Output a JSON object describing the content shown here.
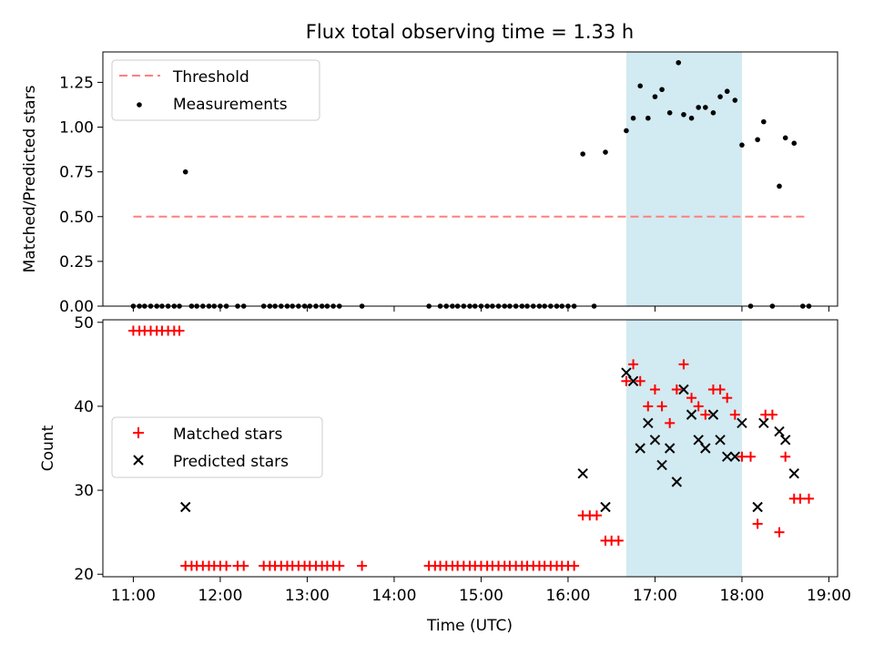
{
  "chart_data": {
    "title": "Flux total observing time = 1.33 h",
    "xlabel": "Time (UTC)",
    "x_ticks": [
      {
        "hour": 11,
        "label": "11:00"
      },
      {
        "hour": 12,
        "label": "12:00"
      },
      {
        "hour": 13,
        "label": "13:00"
      },
      {
        "hour": 14,
        "label": "14:00"
      },
      {
        "hour": 15,
        "label": "15:00"
      },
      {
        "hour": 16,
        "label": "16:00"
      },
      {
        "hour": 17,
        "label": "17:00"
      },
      {
        "hour": 18,
        "label": "18:00"
      },
      {
        "hour": 19,
        "label": "19:00"
      }
    ],
    "x_unit": "hour of day UTC",
    "xlim": [
      10.65,
      19.1
    ],
    "highlight_span": [
      16.67,
      18.0
    ],
    "highlight_color": "#add8e6",
    "panels": [
      {
        "type": "scatter",
        "ylabel": "Matched/Predicted stars",
        "ylim": [
          0,
          1.42
        ],
        "y_ticks": [
          "0.00",
          "0.25",
          "0.50",
          "0.75",
          "1.00",
          "1.25"
        ],
        "legend_position": "upper-left",
        "threshold": {
          "name": "Threshold",
          "value": 0.5,
          "x_range": [
            11.0,
            18.77
          ],
          "color": "#ff7f7f",
          "style": "dashed"
        },
        "series": [
          {
            "name": "Measurements",
            "color": "#000000",
            "marker": "dot",
            "x": [
              11.0,
              11.07,
              11.13,
              11.2,
              11.27,
              11.33,
              11.4,
              11.47,
              11.53,
              11.6,
              11.67,
              11.73,
              11.8,
              11.87,
              11.93,
              12.0,
              12.07,
              12.2,
              12.27,
              12.5,
              12.57,
              12.63,
              12.7,
              12.77,
              12.83,
              12.9,
              12.97,
              13.03,
              13.1,
              13.17,
              13.23,
              13.3,
              13.37,
              13.63,
              14.4,
              14.53,
              14.6,
              14.67,
              14.73,
              14.8,
              14.87,
              14.93,
              15.0,
              15.07,
              15.13,
              15.2,
              15.27,
              15.33,
              15.4,
              15.47,
              15.53,
              15.6,
              15.67,
              15.73,
              15.8,
              15.87,
              15.93,
              16.0,
              16.07,
              16.17,
              16.3,
              16.43,
              16.67,
              16.75,
              16.83,
              16.92,
              17.0,
              17.08,
              17.17,
              17.27,
              17.33,
              17.42,
              17.5,
              17.58,
              17.67,
              17.75,
              17.83,
              17.92,
              18.0,
              18.1,
              18.18,
              18.25,
              18.35,
              18.43,
              18.5,
              18.6,
              18.7,
              18.77
            ],
            "y": [
              0,
              0,
              0,
              0,
              0,
              0,
              0,
              0,
              0,
              0.75,
              0,
              0,
              0,
              0,
              0,
              0,
              0,
              0,
              0,
              0,
              0,
              0,
              0,
              0,
              0,
              0,
              0,
              0,
              0,
              0,
              0,
              0,
              0,
              0,
              0,
              0,
              0,
              0,
              0,
              0,
              0,
              0,
              0,
              0,
              0,
              0,
              0,
              0,
              0,
              0,
              0,
              0,
              0,
              0,
              0,
              0,
              0,
              0,
              0,
              0.85,
              0,
              0.86,
              0.98,
              1.05,
              1.23,
              1.05,
              1.17,
              1.21,
              1.08,
              1.36,
              1.07,
              1.05,
              1.11,
              1.11,
              1.08,
              1.17,
              1.2,
              1.15,
              0.9,
              0,
              0.93,
              1.03,
              0,
              0.67,
              0.94,
              0.91,
              0,
              0
            ]
          }
        ]
      },
      {
        "type": "scatter",
        "ylabel": "Count",
        "ylim": [
          19.7,
          50.3
        ],
        "y_ticks": [
          "20",
          "30",
          "40",
          "50"
        ],
        "legend_position": "center-left",
        "series": [
          {
            "name": "Matched stars",
            "color": "#ff0000",
            "marker": "plus",
            "x": [
              11.0,
              11.07,
              11.13,
              11.2,
              11.27,
              11.33,
              11.4,
              11.47,
              11.53,
              11.6,
              11.67,
              11.73,
              11.8,
              11.87,
              11.93,
              12.0,
              12.07,
              12.2,
              12.27,
              12.5,
              12.57,
              12.63,
              12.7,
              12.77,
              12.83,
              12.9,
              12.97,
              13.03,
              13.1,
              13.17,
              13.23,
              13.3,
              13.37,
              13.63,
              14.4,
              14.47,
              14.53,
              14.6,
              14.67,
              14.73,
              14.8,
              14.87,
              14.93,
              15.0,
              15.07,
              15.13,
              15.2,
              15.27,
              15.33,
              15.4,
              15.47,
              15.53,
              15.6,
              15.67,
              15.73,
              15.8,
              15.87,
              15.93,
              16.0,
              16.07,
              16.17,
              16.25,
              16.33,
              16.43,
              16.5,
              16.58,
              16.67,
              16.75,
              16.83,
              16.92,
              17.0,
              17.08,
              17.17,
              17.25,
              17.33,
              17.42,
              17.5,
              17.58,
              17.67,
              17.75,
              17.83,
              17.92,
              18.0,
              18.1,
              18.18,
              18.27,
              18.35,
              18.43,
              18.5,
              18.6,
              18.67,
              18.77
            ],
            "y": [
              49,
              49,
              49,
              49,
              49,
              49,
              49,
              49,
              49,
              21,
              21,
              21,
              21,
              21,
              21,
              21,
              21,
              21,
              21,
              21,
              21,
              21,
              21,
              21,
              21,
              21,
              21,
              21,
              21,
              21,
              21,
              21,
              21,
              21,
              21,
              21,
              21,
              21,
              21,
              21,
              21,
              21,
              21,
              21,
              21,
              21,
              21,
              21,
              21,
              21,
              21,
              21,
              21,
              21,
              21,
              21,
              21,
              21,
              21,
              21,
              27,
              27,
              27,
              24,
              24,
              24,
              43,
              45,
              43,
              40,
              42,
              40,
              38,
              42,
              45,
              41,
              40,
              39,
              42,
              42,
              41,
              39,
              34,
              34,
              26,
              39,
              39,
              25,
              34,
              29,
              29,
              29
            ]
          },
          {
            "name": "Predicted stars",
            "color": "#000000",
            "marker": "cross",
            "x": [
              11.6,
              16.17,
              16.43,
              16.67,
              16.75,
              16.83,
              16.92,
              17.0,
              17.08,
              17.17,
              17.25,
              17.33,
              17.42,
              17.5,
              17.58,
              17.67,
              17.75,
              17.83,
              17.92,
              18.0,
              18.18,
              18.25,
              18.43,
              18.5,
              18.6
            ],
            "y": [
              28,
              32,
              28,
              44,
              43,
              35,
              38,
              36,
              33,
              35,
              31,
              42,
              39,
              36,
              35,
              39,
              36,
              34,
              34,
              38,
              28,
              38,
              37,
              36,
              32
            ]
          }
        ]
      }
    ]
  }
}
